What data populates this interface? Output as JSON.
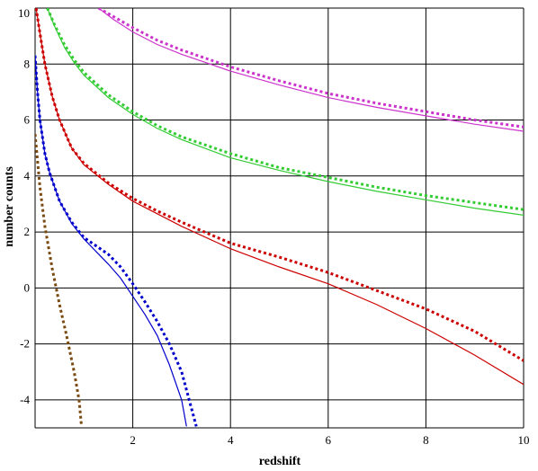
{
  "chart_data": {
    "type": "line",
    "title": "",
    "xlabel": "redshift",
    "ylabel": "number counts",
    "xlim": [
      0,
      10
    ],
    "ylim": [
      -5,
      10
    ],
    "xticks": [
      2,
      4,
      6,
      8,
      10
    ],
    "yticks": [
      10,
      8,
      6,
      4,
      2,
      0,
      -2,
      -4
    ],
    "xtick_labels": [
      "2",
      "4",
      "6",
      "8",
      "10"
    ],
    "ytick_labels": [
      "10",
      "8",
      "6",
      "4",
      "2",
      "0",
      "-2",
      "-4"
    ],
    "grid": true,
    "legend": "none",
    "series": [
      {
        "color": "#cc33cc",
        "style": "solid",
        "x": [
          1.3,
          1.6,
          2.0,
          2.5,
          3.0,
          3.5,
          4.0,
          5.0,
          6.0,
          7.0,
          8.0,
          9.0,
          10.0
        ],
        "y": [
          10.0,
          9.6,
          9.15,
          8.7,
          8.35,
          8.05,
          7.75,
          7.25,
          6.8,
          6.45,
          6.15,
          5.85,
          5.6
        ]
      },
      {
        "color": "#cc33cc",
        "style": "dotted",
        "x": [
          1.3,
          1.6,
          2.0,
          2.5,
          3.0,
          3.5,
          4.0,
          5.0,
          6.0,
          7.0,
          8.0,
          9.0,
          10.0
        ],
        "y": [
          10.0,
          9.7,
          9.3,
          8.85,
          8.5,
          8.2,
          7.9,
          7.4,
          6.95,
          6.6,
          6.3,
          6.0,
          5.75
        ]
      },
      {
        "color": "#33cc33",
        "style": "solid",
        "x": [
          0.25,
          0.4,
          0.6,
          0.8,
          1.0,
          1.5,
          2.0,
          2.5,
          3.0,
          4.0,
          5.0,
          6.0,
          7.0,
          8.0,
          9.0,
          10.0
        ],
        "y": [
          10.0,
          9.35,
          8.6,
          8.05,
          7.6,
          6.8,
          6.2,
          5.7,
          5.3,
          4.65,
          4.2,
          3.8,
          3.45,
          3.15,
          2.85,
          2.6
        ]
      },
      {
        "color": "#33cc33",
        "style": "dotted",
        "x": [
          0.25,
          0.4,
          0.6,
          0.8,
          1.0,
          1.5,
          2.0,
          2.5,
          3.0,
          4.0,
          5.0,
          6.0,
          7.0,
          8.0,
          9.0,
          10.0
        ],
        "y": [
          10.0,
          9.4,
          8.7,
          8.15,
          7.7,
          6.9,
          6.3,
          5.8,
          5.4,
          4.8,
          4.3,
          3.95,
          3.6,
          3.3,
          3.05,
          2.8
        ]
      },
      {
        "color": "#cc0000",
        "style": "solid",
        "x": [
          0.02,
          0.1,
          0.2,
          0.35,
          0.5,
          0.75,
          1.0,
          1.5,
          2.0,
          2.5,
          3.0,
          4.0,
          5.0,
          6.0,
          7.0,
          8.0,
          9.0,
          10.0
        ],
        "y": [
          10.0,
          9.1,
          8.0,
          6.85,
          6.0,
          5.0,
          4.4,
          3.7,
          3.1,
          2.65,
          2.2,
          1.4,
          0.75,
          0.15,
          -0.6,
          -1.45,
          -2.4,
          -3.45
        ]
      },
      {
        "color": "#cc0000",
        "style": "dotted",
        "x": [
          0.02,
          0.1,
          0.2,
          0.35,
          0.5,
          0.75,
          1.0,
          1.5,
          2.0,
          2.5,
          3.0,
          4.0,
          5.0,
          6.0,
          7.0,
          8.0,
          9.0,
          10.0
        ],
        "y": [
          10.0,
          9.1,
          8.0,
          6.85,
          6.0,
          5.0,
          4.45,
          3.75,
          3.2,
          2.75,
          2.35,
          1.6,
          1.1,
          0.55,
          -0.1,
          -0.75,
          -1.55,
          -2.6
        ]
      },
      {
        "color": "#0000cc",
        "style": "solid",
        "x": [
          0.0,
          0.05,
          0.1,
          0.2,
          0.3,
          0.5,
          0.75,
          1.0,
          1.25,
          1.5,
          1.75,
          2.0,
          2.25,
          2.5,
          2.75,
          3.0,
          3.1
        ],
        "y": [
          8.3,
          7.0,
          6.0,
          4.8,
          4.1,
          3.1,
          2.3,
          1.75,
          1.3,
          0.85,
          0.35,
          -0.3,
          -0.95,
          -1.7,
          -2.75,
          -4.0,
          -4.95
        ]
      },
      {
        "color": "#0000cc",
        "style": "dotted",
        "x": [
          0.0,
          0.05,
          0.1,
          0.2,
          0.3,
          0.5,
          0.75,
          1.0,
          1.25,
          1.5,
          1.75,
          2.0,
          2.25,
          2.5,
          2.75,
          3.0,
          3.3
        ],
        "y": [
          8.3,
          7.0,
          6.0,
          4.8,
          4.1,
          3.1,
          2.35,
          1.8,
          1.5,
          1.2,
          0.75,
          0.15,
          -0.5,
          -1.2,
          -2.0,
          -3.0,
          -4.95
        ]
      },
      {
        "color": "#7a4a10",
        "style": "dotted",
        "x": [
          0.0,
          0.1,
          0.2,
          0.35,
          0.5,
          0.65,
          0.8,
          0.9,
          0.95
        ],
        "y": [
          5.5,
          3.6,
          2.2,
          0.7,
          -0.6,
          -1.75,
          -3.0,
          -4.0,
          -4.95
        ]
      }
    ]
  }
}
